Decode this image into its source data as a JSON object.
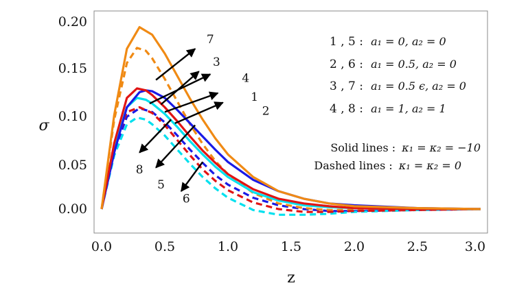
{
  "chart_data": {
    "type": "line",
    "xlabel": "z",
    "ylabel": "σ",
    "xlim": [
      0.0,
      3.0
    ],
    "ylim": [
      -0.025,
      0.205
    ],
    "x_ticks": [
      "0.0",
      "0.5",
      "1.0",
      "1.5",
      "2.0",
      "2.5",
      "3.0"
    ],
    "y_ticks": [
      "0.00",
      "0.05",
      "0.10",
      "0.15",
      "0.20"
    ],
    "series": [
      {
        "name": "1",
        "color": "#1a1ae6",
        "style": "solid",
        "x": [
          0,
          0.1,
          0.2,
          0.3,
          0.35,
          0.4,
          0.5,
          0.6,
          0.7,
          0.8,
          0.9,
          1.0,
          1.2,
          1.4,
          1.6,
          1.8,
          2.0,
          2.5,
          3.0
        ],
        "y": [
          0,
          0.06,
          0.108,
          0.124,
          0.126,
          0.125,
          0.118,
          0.105,
          0.091,
          0.077,
          0.063,
          0.05,
          0.031,
          0.019,
          0.011,
          0.006,
          0.004,
          0.001,
          0
        ]
      },
      {
        "name": "2",
        "color": "#00e0ee",
        "style": "solid",
        "x": [
          0,
          0.1,
          0.2,
          0.28,
          0.35,
          0.4,
          0.5,
          0.6,
          0.7,
          0.8,
          0.9,
          1.0,
          1.2,
          1.4,
          1.6,
          1.8,
          2.0,
          2.5,
          3.0
        ],
        "y": [
          0,
          0.064,
          0.108,
          0.118,
          0.116,
          0.112,
          0.101,
          0.087,
          0.072,
          0.058,
          0.045,
          0.034,
          0.018,
          0.009,
          0.004,
          0.002,
          0.001,
          0,
          0
        ]
      },
      {
        "name": "3",
        "color": "#f08a14",
        "style": "solid",
        "x": [
          0,
          0.1,
          0.2,
          0.3,
          0.4,
          0.5,
          0.6,
          0.7,
          0.8,
          0.9,
          1.0,
          1.2,
          1.4,
          1.6,
          1.8,
          2.0,
          2.5,
          3.0
        ],
        "y": [
          0,
          0.1,
          0.17,
          0.193,
          0.185,
          0.165,
          0.141,
          0.117,
          0.095,
          0.075,
          0.058,
          0.034,
          0.019,
          0.011,
          0.006,
          0.003,
          0.001,
          0
        ]
      },
      {
        "name": "4",
        "color": "#e01414",
        "style": "solid",
        "x": [
          0,
          0.1,
          0.2,
          0.28,
          0.35,
          0.4,
          0.5,
          0.6,
          0.7,
          0.8,
          0.9,
          1.0,
          1.2,
          1.4,
          1.6,
          1.8,
          2.0,
          2.5,
          3.0
        ],
        "y": [
          0,
          0.07,
          0.118,
          0.128,
          0.126,
          0.121,
          0.108,
          0.093,
          0.077,
          0.062,
          0.049,
          0.037,
          0.021,
          0.011,
          0.006,
          0.003,
          0.001,
          0,
          0
        ]
      },
      {
        "name": "5",
        "color": "#1a1ae6",
        "style": "dashed",
        "x": [
          0,
          0.1,
          0.2,
          0.3,
          0.4,
          0.5,
          0.6,
          0.7,
          0.8,
          0.9,
          1.0,
          1.2,
          1.4,
          1.6,
          1.8,
          2.0,
          2.5,
          3.0
        ],
        "y": [
          0,
          0.062,
          0.098,
          0.107,
          0.103,
          0.092,
          0.078,
          0.063,
          0.049,
          0.036,
          0.026,
          0.012,
          0.004,
          0,
          -0.002,
          -0.002,
          -0.001,
          0
        ]
      },
      {
        "name": "6",
        "color": "#00e0ee",
        "style": "dashed",
        "x": [
          0,
          0.1,
          0.2,
          0.28,
          0.35,
          0.4,
          0.5,
          0.6,
          0.7,
          0.8,
          0.9,
          1.0,
          1.2,
          1.4,
          1.6,
          1.8,
          2.0,
          2.5,
          3.0
        ],
        "y": [
          0,
          0.057,
          0.09,
          0.097,
          0.095,
          0.09,
          0.078,
          0.063,
          0.048,
          0.034,
          0.022,
          0.012,
          -0.001,
          -0.006,
          -0.006,
          -0.005,
          -0.003,
          -0.001,
          0
        ]
      },
      {
        "name": "7",
        "color": "#f08a14",
        "style": "dashed",
        "x": [
          0,
          0.1,
          0.2,
          0.28,
          0.35,
          0.4,
          0.5,
          0.6,
          0.7,
          0.8,
          0.9,
          1.0,
          1.2,
          1.4,
          1.6,
          1.8,
          2.0,
          2.5,
          3.0
        ],
        "y": [
          0,
          0.095,
          0.155,
          0.171,
          0.168,
          0.16,
          0.138,
          0.114,
          0.09,
          0.069,
          0.051,
          0.037,
          0.017,
          0.006,
          0.001,
          -0.001,
          -0.001,
          0,
          0
        ]
      },
      {
        "name": "8",
        "color": "#e01414",
        "style": "dashed",
        "x": [
          0,
          0.1,
          0.2,
          0.3,
          0.4,
          0.5,
          0.6,
          0.7,
          0.8,
          0.9,
          1.0,
          1.2,
          1.4,
          1.6,
          1.8,
          2.0,
          2.5,
          3.0
        ],
        "y": [
          0,
          0.066,
          0.103,
          0.108,
          0.102,
          0.089,
          0.073,
          0.057,
          0.042,
          0.03,
          0.02,
          0.007,
          0,
          -0.003,
          -0.003,
          -0.002,
          -0.001,
          0
        ]
      }
    ],
    "arrow_labels": [
      {
        "text": "7",
        "x": 0.86,
        "y": 0.176
      },
      {
        "text": "3",
        "x": 0.91,
        "y": 0.152
      },
      {
        "text": "4",
        "x": 1.14,
        "y": 0.135
      },
      {
        "text": "1",
        "x": 1.21,
        "y": 0.115
      },
      {
        "text": "2",
        "x": 1.3,
        "y": 0.1
      },
      {
        "text": "8",
        "x": 0.3,
        "y": 0.038
      },
      {
        "text": "5",
        "x": 0.47,
        "y": 0.022
      },
      {
        "text": "6",
        "x": 0.67,
        "y": 0.007
      }
    ],
    "legend": [
      {
        "id": "1 , 5 :",
        "desc": "a₁ = 0, a₂ = 0"
      },
      {
        "id": "2 , 6 :",
        "desc": "a₁ = 0.5, a₂ = 0"
      },
      {
        "id": "3 , 7 :",
        "desc": "a₁ = 0.5 ϵ, a₂ = 0"
      },
      {
        "id": "4 , 8 :",
        "desc": "a₁ = 1, a₂ = 1"
      }
    ],
    "notes": [
      {
        "label": "Solid lines :",
        "value": "κ₁ = κ₂ = −10"
      },
      {
        "label": "Dashed lines :",
        "value": "κ₁ = κ₂ = 0"
      }
    ]
  }
}
